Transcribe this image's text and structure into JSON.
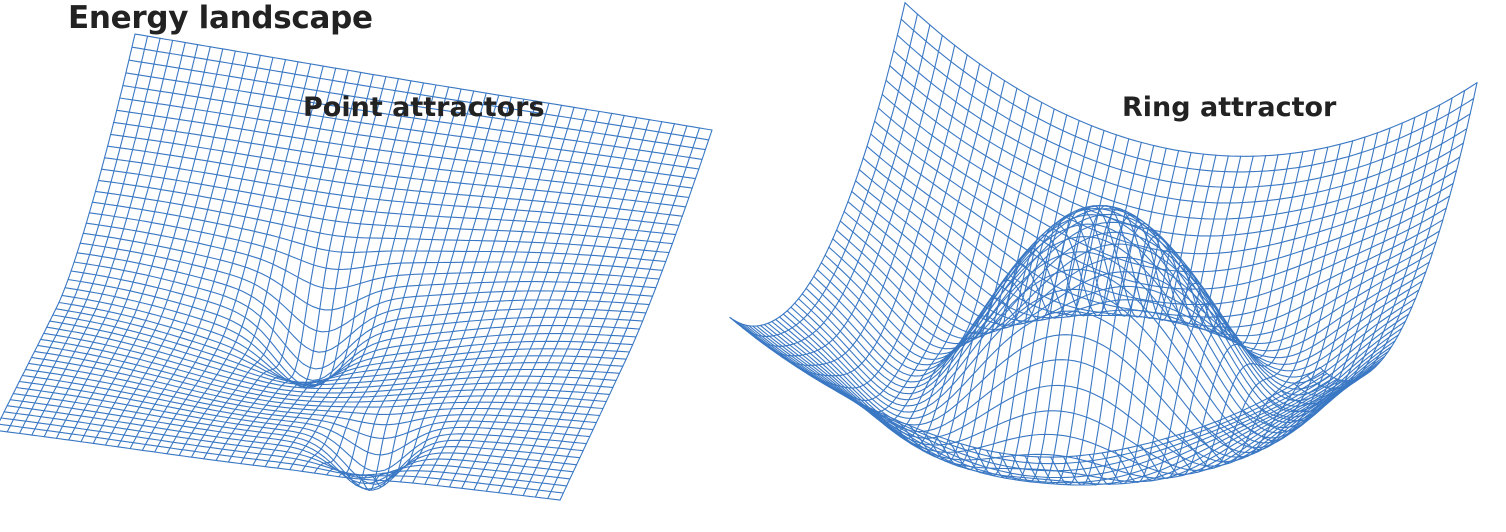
{
  "figure": {
    "title": "Energy landscape"
  },
  "panels": [
    {
      "label": "Point attractors",
      "surface": "point-attractors"
    },
    {
      "label": "Ring attractor",
      "surface": "ring-attractor"
    }
  ],
  "colors": {
    "mesh": "#3a78c4",
    "text": "#222222",
    "background": "#ffffff"
  }
}
